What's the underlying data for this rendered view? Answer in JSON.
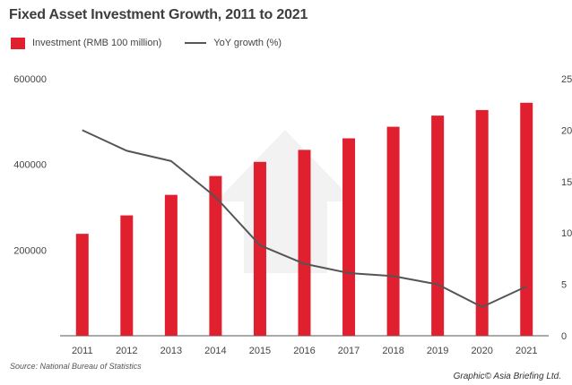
{
  "chart_data": {
    "type": "bar",
    "title": "Fixed Asset Investment Growth, 2011 to 2021",
    "categories": [
      "2011",
      "2012",
      "2013",
      "2014",
      "2015",
      "2016",
      "2017",
      "2018",
      "2019",
      "2020",
      "2021"
    ],
    "series": [
      {
        "name": "Investment (RMB 100 million)",
        "type": "bar",
        "axis": "left",
        "color": "#e0202f",
        "values": [
          238000,
          281000,
          329000,
          373000,
          406000,
          434000,
          461000,
          488000,
          514000,
          527000,
          544000
        ]
      },
      {
        "name": "YoY growth (%)",
        "type": "line",
        "axis": "right",
        "color": "#555555",
        "values": [
          20.0,
          18.0,
          17.0,
          13.5,
          8.8,
          7.0,
          6.1,
          5.8,
          5.0,
          2.8,
          4.8
        ]
      }
    ],
    "yaxis_left": {
      "ylim": [
        0,
        600000
      ],
      "ticks": [
        "200000",
        "400000",
        "600000"
      ]
    },
    "yaxis_right": {
      "ylim": [
        0,
        25
      ],
      "ticks": [
        "0",
        "5",
        "10",
        "15",
        "20",
        "25"
      ]
    },
    "legend_position": "top-left",
    "grid": false
  },
  "source": "Source: National Bureau of Statistics",
  "credit": "Graphic© Asia Briefing Ltd."
}
